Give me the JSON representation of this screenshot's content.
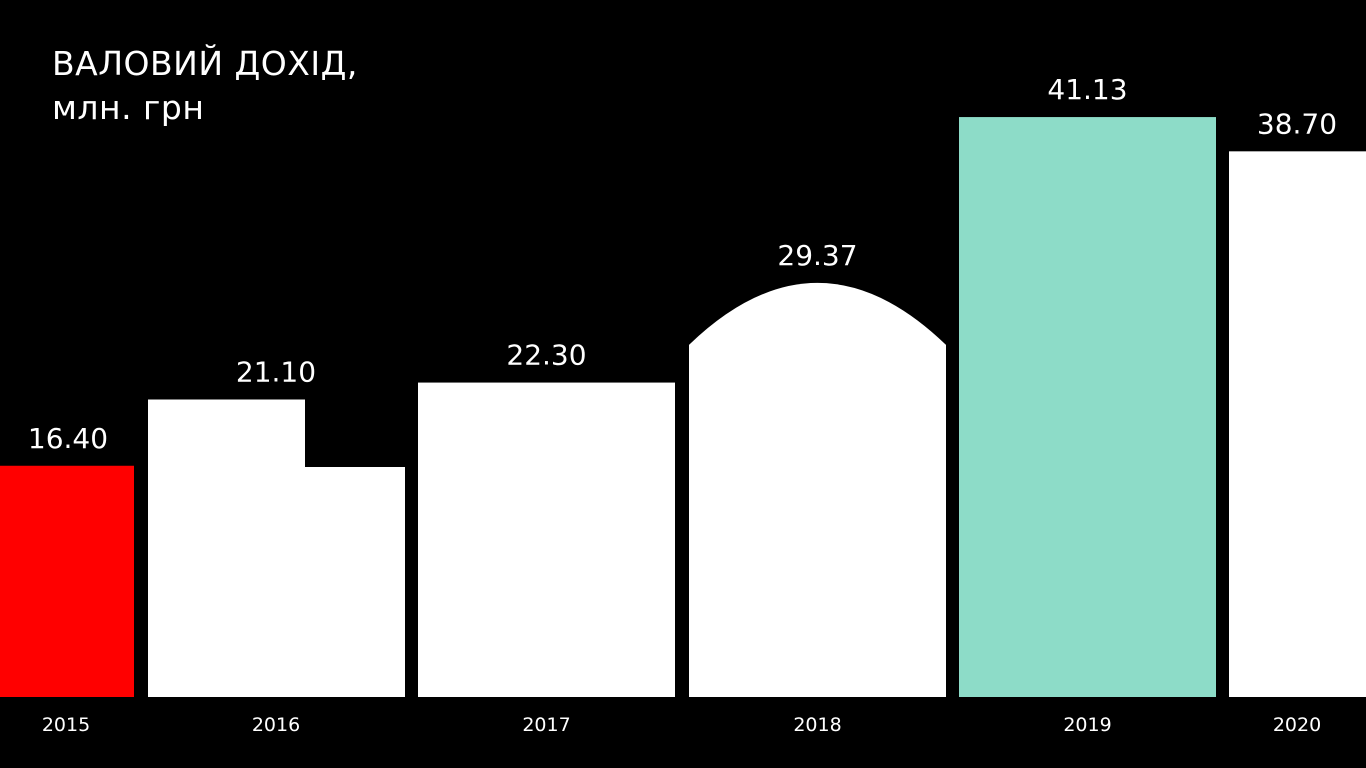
{
  "chart_data": {
    "type": "bar",
    "title": "ВАЛОВИЙ ДОХІД,",
    "subtitle": "млн. грн",
    "categories": [
      "2015",
      "2016",
      "2017",
      "2018",
      "2019",
      "2020"
    ],
    "values": [
      16.4,
      21.1,
      22.3,
      29.37,
      41.13,
      38.7
    ],
    "value_labels": [
      "16.40",
      "21.10",
      "22.30",
      "29.37",
      "41.13",
      "38.70"
    ],
    "bar_colors": [
      "#ff0000",
      "#ffffff",
      "#ffffff",
      "#ffffff",
      "#8ddcc8",
      "#ffffff"
    ],
    "background_color": "#000000",
    "grid": false,
    "legend": "none",
    "ylim": [
      0,
      42
    ]
  }
}
